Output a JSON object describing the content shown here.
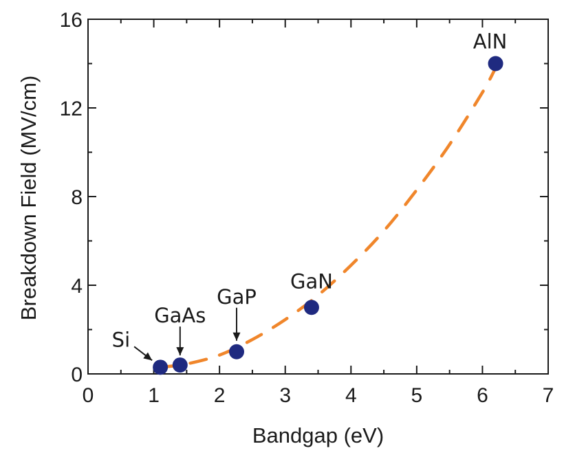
{
  "chart_data": {
    "type": "scatter",
    "title": "",
    "xlabel": "Bandgap (eV)",
    "ylabel": "Breakdown Field (MV/cm)",
    "xlim": [
      0,
      7
    ],
    "ylim": [
      0,
      16
    ],
    "xticks": [
      0,
      1,
      2,
      3,
      4,
      5,
      6,
      7
    ],
    "yticks": [
      0,
      4,
      8,
      12,
      16
    ],
    "x_minor_step": 0.5,
    "y_minor_step": 2,
    "grid": false,
    "legend": "none",
    "points": [
      {
        "label": "Si",
        "x": 1.1,
        "y": 0.3
      },
      {
        "label": "GaAs",
        "x": 1.4,
        "y": 0.4
      },
      {
        "label": "GaP",
        "x": 2.26,
        "y": 1.0
      },
      {
        "label": "GaN",
        "x": 3.4,
        "y": 3.0
      },
      {
        "label": "AlN",
        "x": 6.2,
        "y": 14.0
      }
    ],
    "fit_curve": {
      "style": "dashed",
      "x": [
        1.1,
        1.5,
        2.0,
        2.5,
        3.0,
        3.5,
        4.0,
        4.5,
        5.0,
        5.5,
        6.0,
        6.2
      ],
      "y": [
        0.3,
        0.45,
        0.85,
        1.55,
        2.45,
        3.55,
        4.9,
        6.45,
        8.3,
        10.35,
        12.7,
        13.8
      ]
    },
    "colors": {
      "point": "#1f2a80",
      "curve": "#f0862b",
      "axis": "#1a1a1a"
    }
  }
}
